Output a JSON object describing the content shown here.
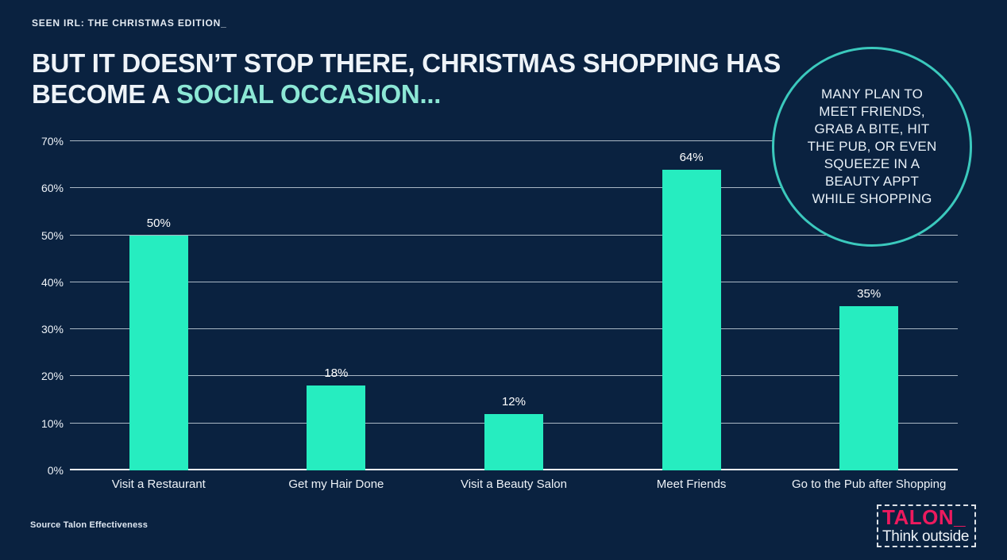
{
  "slide": {
    "tag": "SEEN IRL: THE CHRISTMAS EDITION_",
    "title_line1": "BUT IT DOESN’T STOP THERE, CHRISTMAS SHOPPING HAS",
    "title_line2_plain": "BECOME A ",
    "title_line2_accent": "SOCIAL OCCASION...",
    "badge_text": "MANY PLAN TO\nMEET FRIENDS,\nGRAB A BITE, HIT\nTHE PUB, OR EVEN\nSQUEEZE IN A\nBEAUTY APPT\nWHILE SHOPPING",
    "source": "Source Talon Effectiveness",
    "logo": {
      "name": "TALON_",
      "tagline": "Think outside"
    }
  },
  "colors": {
    "background": "#0a2240",
    "bar": "#26edc0",
    "accent_text": "#8ce7d5",
    "circle_stroke": "#3bc9bd",
    "logo_pink": "#ed1a5e",
    "gridline": "#c7d2dd"
  },
  "chart_data": {
    "type": "bar",
    "title": "",
    "xlabel": "",
    "ylabel": "",
    "categories": [
      "Visit a Restaurant",
      "Get my Hair Done",
      "Visit a Beauty Salon",
      "Meet Friends",
      "Go to the Pub after Shopping"
    ],
    "values": [
      50,
      18,
      12,
      64,
      35
    ],
    "value_labels": [
      "50%",
      "18%",
      "12%",
      "64%",
      "35%"
    ],
    "y_ticks": [
      "0%",
      "10%",
      "20%",
      "30%",
      "40%",
      "50%",
      "60%",
      "70%"
    ],
    "ylim": [
      0,
      70
    ],
    "grid": true,
    "legend": false
  }
}
